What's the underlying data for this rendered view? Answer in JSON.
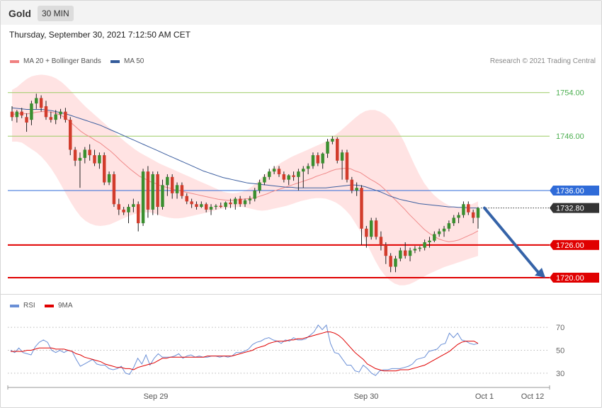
{
  "header": {
    "title": "Gold",
    "interval": "30 MIN"
  },
  "timestamp": "Thursday, September 30, 2021 7:12:50 AM CET",
  "legend": {
    "ma20": {
      "label": "MA 20 + Bollinger Bands",
      "color": "#f08080"
    },
    "ma50": {
      "label": "MA 50",
      "color": "#335b9a"
    }
  },
  "credit": "Research © 2021 Trading Central",
  "rsi_legend": {
    "rsi": {
      "label": "RSI",
      "color": "#6a8fd6"
    },
    "ma9": {
      "label": "9MA",
      "color": "#e00000"
    }
  },
  "chart_data": [
    {
      "type": "candlestick",
      "ylim": [
        1717,
        1758
      ],
      "levels": [
        {
          "value": 1754.0,
          "label": "1754.00",
          "kind": "resistance-minor",
          "color": "#9ccc65"
        },
        {
          "value": 1746.0,
          "label": "1746.00",
          "kind": "resistance-minor",
          "color": "#9ccc65"
        },
        {
          "value": 1736.0,
          "label": "1736.00",
          "kind": "pivot",
          "color": "#2f6bd8"
        },
        {
          "value": 1732.8,
          "label": "1732.80",
          "kind": "last-price",
          "color": "#333333"
        },
        {
          "value": 1726.0,
          "label": "1726.00",
          "kind": "support",
          "color": "#e00000"
        },
        {
          "value": 1720.0,
          "label": "1720.00",
          "kind": "support",
          "color": "#e00000"
        }
      ],
      "x_labels": [
        "Sep 29",
        "Sep 30",
        "Oct 1",
        "Oct 12"
      ],
      "candles": [
        [
          1750.5,
          1751.5,
          1748.8,
          1749.5
        ],
        [
          1749.5,
          1750.8,
          1748.5,
          1750.5
        ],
        [
          1750.5,
          1751.2,
          1749.3,
          1749.8
        ],
        [
          1749.5,
          1750.2,
          1746.8,
          1748.5
        ],
        [
          1749.0,
          1752.5,
          1748.0,
          1752.0
        ],
        [
          1752.0,
          1753.8,
          1751.0,
          1753.0
        ],
        [
          1753.0,
          1753.5,
          1750.5,
          1751.2
        ],
        [
          1751.5,
          1752.5,
          1749.0,
          1749.5
        ],
        [
          1749.5,
          1750.5,
          1748.5,
          1749.0
        ],
        [
          1749.0,
          1750.8,
          1748.2,
          1750.0
        ],
        [
          1750.0,
          1751.0,
          1749.2,
          1750.5
        ],
        [
          1750.5,
          1751.2,
          1748.5,
          1749.0
        ],
        [
          1749.0,
          1749.5,
          1742.5,
          1743.5
        ],
        [
          1743.5,
          1744.0,
          1740.5,
          1741.5
        ],
        [
          1741.5,
          1743.0,
          1736.5,
          1742.0
        ],
        [
          1742.0,
          1744.0,
          1741.0,
          1743.5
        ],
        [
          1743.5,
          1744.5,
          1741.5,
          1742.5
        ],
        [
          1742.5,
          1743.5,
          1740.5,
          1741.0
        ],
        [
          1741.0,
          1743.0,
          1740.0,
          1742.5
        ],
        [
          1742.5,
          1743.0,
          1737.0,
          1737.5
        ],
        [
          1737.5,
          1739.5,
          1737.0,
          1739.0
        ],
        [
          1739.0,
          1739.5,
          1733.0,
          1733.5
        ],
        [
          1733.5,
          1734.5,
          1731.5,
          1732.5
        ],
        [
          1732.5,
          1733.0,
          1731.5,
          1732.0
        ],
        [
          1732.0,
          1733.5,
          1730.0,
          1733.0
        ],
        [
          1733.0,
          1734.5,
          1732.0,
          1733.5
        ],
        [
          1733.5,
          1734.0,
          1728.5,
          1730.0
        ],
        [
          1730.0,
          1740.0,
          1729.5,
          1739.5
        ],
        [
          1739.5,
          1740.5,
          1731.0,
          1732.5
        ],
        [
          1732.5,
          1739.5,
          1731.5,
          1739.0
        ],
        [
          1739.0,
          1739.5,
          1731.5,
          1733.0
        ],
        [
          1733.0,
          1738.0,
          1732.5,
          1737.0
        ],
        [
          1737.0,
          1739.0,
          1735.0,
          1738.5
        ],
        [
          1738.5,
          1739.0,
          1734.5,
          1735.5
        ],
        [
          1735.5,
          1737.5,
          1734.5,
          1737.0
        ],
        [
          1737.0,
          1737.5,
          1734.5,
          1735.0
        ],
        [
          1735.0,
          1735.5,
          1733.5,
          1734.0
        ],
        [
          1734.0,
          1734.5,
          1732.8,
          1733.5
        ],
        [
          1733.5,
          1734.0,
          1732.5,
          1733.0
        ],
        [
          1733.0,
          1734.0,
          1732.8,
          1733.5
        ],
        [
          1733.5,
          1733.8,
          1732.0,
          1732.5
        ],
        [
          1732.5,
          1733.5,
          1731.5,
          1733.0
        ],
        [
          1733.0,
          1733.5,
          1732.5,
          1733.2
        ],
        [
          1733.2,
          1733.8,
          1732.8,
          1733.0
        ],
        [
          1733.0,
          1734.0,
          1732.5,
          1733.8
        ],
        [
          1733.8,
          1734.5,
          1732.8,
          1733.5
        ],
        [
          1733.5,
          1734.8,
          1732.5,
          1734.5
        ],
        [
          1734.5,
          1735.0,
          1733.0,
          1733.5
        ],
        [
          1733.5,
          1734.5,
          1733.0,
          1734.2
        ],
        [
          1734.2,
          1735.0,
          1733.5,
          1734.5
        ],
        [
          1734.5,
          1736.5,
          1734.0,
          1736.0
        ],
        [
          1736.0,
          1738.0,
          1735.5,
          1737.5
        ],
        [
          1737.5,
          1739.0,
          1737.0,
          1738.5
        ],
        [
          1738.5,
          1740.0,
          1738.0,
          1739.5
        ],
        [
          1739.5,
          1740.5,
          1739.0,
          1740.0
        ],
        [
          1740.0,
          1740.5,
          1738.5,
          1739.0
        ],
        [
          1739.0,
          1739.5,
          1737.5,
          1738.0
        ],
        [
          1738.0,
          1739.0,
          1737.0,
          1738.8
        ],
        [
          1738.8,
          1739.5,
          1737.8,
          1738.5
        ],
        [
          1738.5,
          1740.0,
          1736.0,
          1739.5
        ],
        [
          1739.5,
          1740.5,
          1736.5,
          1740.0
        ],
        [
          1740.0,
          1741.0,
          1739.0,
          1740.5
        ],
        [
          1740.5,
          1743.0,
          1740.0,
          1742.5
        ],
        [
          1742.5,
          1743.0,
          1740.5,
          1741.0
        ],
        [
          1741.0,
          1743.0,
          1740.0,
          1742.8
        ],
        [
          1742.8,
          1745.5,
          1742.0,
          1745.0
        ],
        [
          1745.0,
          1746.0,
          1744.5,
          1745.5
        ],
        [
          1745.5,
          1745.8,
          1741.0,
          1741.5
        ],
        [
          1741.5,
          1743.5,
          1738.0,
          1743.0
        ],
        [
          1743.0,
          1743.5,
          1737.5,
          1738.0
        ],
        [
          1738.0,
          1738.5,
          1735.5,
          1736.0
        ],
        [
          1736.0,
          1737.5,
          1735.0,
          1736.5
        ],
        [
          1736.5,
          1737.0,
          1726.0,
          1729.0
        ],
        [
          1729.0,
          1729.5,
          1725.5,
          1727.5
        ],
        [
          1727.5,
          1731.0,
          1727.0,
          1730.5
        ],
        [
          1730.5,
          1731.0,
          1727.0,
          1727.5
        ],
        [
          1727.5,
          1728.5,
          1725.0,
          1726.0
        ],
        [
          1726.0,
          1726.5,
          1722.5,
          1724.0
        ],
        [
          1724.0,
          1724.5,
          1721.0,
          1722.0
        ],
        [
          1722.0,
          1724.0,
          1721.0,
          1723.5
        ],
        [
          1723.5,
          1725.5,
          1723.0,
          1725.0
        ],
        [
          1725.0,
          1726.5,
          1723.5,
          1724.0
        ],
        [
          1724.0,
          1725.5,
          1723.0,
          1725.0
        ],
        [
          1725.0,
          1725.8,
          1724.5,
          1725.3
        ],
        [
          1725.3,
          1725.8,
          1724.8,
          1725.5
        ],
        [
          1725.5,
          1727.0,
          1725.0,
          1726.5
        ],
        [
          1726.5,
          1727.5,
          1725.5,
          1726.8
        ],
        [
          1726.8,
          1728.5,
          1726.5,
          1728.0
        ],
        [
          1728.0,
          1729.0,
          1727.5,
          1728.5
        ],
        [
          1728.5,
          1729.5,
          1727.5,
          1729.0
        ],
        [
          1729.0,
          1730.5,
          1728.5,
          1730.0
        ],
        [
          1730.0,
          1731.5,
          1729.5,
          1731.0
        ],
        [
          1731.0,
          1732.0,
          1730.0,
          1731.5
        ],
        [
          1731.5,
          1734.0,
          1731.0,
          1733.5
        ],
        [
          1733.5,
          1734.0,
          1731.5,
          1732.0
        ],
        [
          1732.0,
          1732.5,
          1730.0,
          1731.0
        ],
        [
          1731.0,
          1733.0,
          1729.0,
          1732.8
        ]
      ],
      "ma20": [
        1750.0,
        1750.1,
        1750.2,
        1750.1,
        1750.2,
        1750.4,
        1750.5,
        1750.5,
        1750.4,
        1750.2,
        1749.8,
        1749.3,
        1748.5,
        1747.7,
        1746.9,
        1746.3,
        1745.8,
        1745.2,
        1744.7,
        1744.0,
        1743.3,
        1742.5,
        1741.6,
        1740.8,
        1740.0,
        1739.3,
        1738.6,
        1738.2,
        1737.7,
        1737.4,
        1737.0,
        1736.7,
        1736.5,
        1736.2,
        1736.0,
        1735.8,
        1735.6,
        1735.4,
        1735.2,
        1735.0,
        1734.8,
        1734.6,
        1734.4,
        1734.3,
        1734.2,
        1734.2,
        1734.3,
        1734.4,
        1734.5,
        1734.6,
        1734.8,
        1735.1,
        1735.4,
        1735.8,
        1736.1,
        1736.4,
        1736.7,
        1737.0,
        1737.3,
        1737.6,
        1737.9,
        1738.2,
        1738.6,
        1738.9,
        1739.2,
        1739.6,
        1739.9,
        1740.0,
        1740.1,
        1740.0,
        1739.6,
        1739.3,
        1738.7,
        1738.1,
        1737.6,
        1737.0,
        1736.2,
        1735.3,
        1734.4,
        1733.5,
        1732.6,
        1731.6,
        1730.7,
        1729.8,
        1728.9,
        1728.2,
        1727.6,
        1727.1,
        1726.8,
        1726.6,
        1726.7,
        1726.9,
        1727.3,
        1727.7,
        1728.1,
        1728.6
      ],
      "ma50": [
        1751.2,
        1751.1,
        1751.0,
        1750.9,
        1750.9,
        1750.9,
        1750.9,
        1750.8,
        1750.7,
        1750.5,
        1750.3,
        1750.1,
        1749.8,
        1749.5,
        1749.2,
        1748.9,
        1748.6,
        1748.3,
        1748.0,
        1747.6,
        1747.2,
        1746.8,
        1746.4,
        1746.0,
        1745.6,
        1745.2,
        1744.8,
        1744.4,
        1744.0,
        1743.6,
        1743.2,
        1742.8,
        1742.4,
        1742.0,
        1741.6,
        1741.2,
        1740.8,
        1740.4,
        1740.0,
        1739.6,
        1739.3,
        1739.0,
        1738.7,
        1738.4,
        1738.2,
        1738.0,
        1737.8,
        1737.6,
        1737.4,
        1737.3,
        1737.2,
        1737.1,
        1737.0,
        1736.9,
        1736.8,
        1736.7,
        1736.6,
        1736.6,
        1736.5,
        1736.5,
        1736.5,
        1736.5,
        1736.5,
        1736.5,
        1736.5,
        1736.6,
        1736.7,
        1736.8,
        1736.9,
        1737.0,
        1737.0,
        1736.9,
        1736.7,
        1736.4,
        1736.1,
        1735.8,
        1735.4,
        1735.0,
        1734.7,
        1734.4,
        1734.2,
        1734.0,
        1733.8,
        1733.6,
        1733.5,
        1733.4,
        1733.3,
        1733.2,
        1733.1,
        1733.0,
        1733.0,
        1732.9,
        1732.9,
        1732.8,
        1732.8,
        1732.8
      ],
      "bb_upper": [
        1754.5,
        1755.0,
        1755.8,
        1756.5,
        1757.0,
        1757.2,
        1757.3,
        1757.2,
        1757.0,
        1756.6,
        1756.0,
        1755.2,
        1754.3,
        1753.3,
        1752.3,
        1751.4,
        1750.6,
        1749.8,
        1749.0,
        1748.2,
        1747.4,
        1746.6,
        1745.8,
        1745.0,
        1744.3,
        1743.6,
        1743.0,
        1742.5,
        1742.0,
        1741.5,
        1741.0,
        1740.6,
        1740.2,
        1739.8,
        1739.4,
        1739.0,
        1738.6,
        1738.2,
        1737.8,
        1737.4,
        1737.0,
        1736.6,
        1736.2,
        1735.8,
        1735.6,
        1735.5,
        1735.6,
        1735.8,
        1736.2,
        1736.8,
        1737.6,
        1738.5,
        1739.3,
        1740.0,
        1740.6,
        1741.2,
        1741.7,
        1742.2,
        1742.6,
        1743.0,
        1743.4,
        1743.8,
        1744.2,
        1744.6,
        1745.0,
        1745.6,
        1746.3,
        1747.0,
        1747.8,
        1748.6,
        1749.4,
        1750.1,
        1750.6,
        1750.8,
        1750.8,
        1750.5,
        1750.0,
        1749.2,
        1748.0,
        1746.5,
        1744.8,
        1742.8,
        1740.8,
        1739.0,
        1737.4,
        1736.2,
        1735.2,
        1734.4,
        1733.8,
        1733.3,
        1733.0,
        1732.9,
        1733.0,
        1733.3,
        1733.6,
        1734.0
      ],
      "bb_lower": [
        1745.0,
        1745.0,
        1744.8,
        1744.2,
        1743.6,
        1743.0,
        1742.2,
        1741.2,
        1740.0,
        1738.6,
        1737.0,
        1735.4,
        1733.8,
        1732.4,
        1731.2,
        1730.4,
        1729.9,
        1729.6,
        1729.5,
        1729.6,
        1729.8,
        1730.2,
        1730.6,
        1731.0,
        1731.4,
        1731.7,
        1731.9,
        1732.0,
        1732.0,
        1731.8,
        1731.5,
        1731.2,
        1731.0,
        1730.9,
        1730.9,
        1731.0,
        1731.2,
        1731.4,
        1731.6,
        1731.8,
        1732.0,
        1732.3,
        1732.5,
        1732.7,
        1732.8,
        1732.9,
        1733.0,
        1733.0,
        1732.8,
        1732.6,
        1732.4,
        1732.3,
        1732.4,
        1732.6,
        1732.8,
        1733.0,
        1733.2,
        1733.5,
        1733.8,
        1734.1,
        1734.3,
        1734.5,
        1734.6,
        1734.6,
        1734.5,
        1734.2,
        1733.8,
        1733.2,
        1732.4,
        1731.4,
        1730.0,
        1728.5,
        1726.8,
        1725.0,
        1723.2,
        1721.6,
        1720.4,
        1719.5,
        1718.9,
        1718.6,
        1718.6,
        1718.8,
        1719.2,
        1719.7,
        1720.2,
        1720.7,
        1721.1,
        1721.5,
        1721.9,
        1722.2,
        1722.5,
        1722.8,
        1723.1,
        1723.4,
        1723.7,
        1724.0
      ],
      "forecast_arrow": {
        "from": 1732.8,
        "to": 1720.0
      }
    },
    {
      "type": "line",
      "name": "RSI",
      "ylim": [
        20,
        80
      ],
      "y_ticks": [
        70,
        50,
        30
      ],
      "rsi": [
        50,
        48,
        52,
        48,
        47,
        46,
        53,
        57,
        59,
        57,
        50,
        48,
        50,
        48,
        50,
        49,
        42,
        36,
        38,
        40,
        42,
        38,
        37,
        37,
        34,
        33,
        34,
        36,
        30,
        29,
        35,
        43,
        38,
        46,
        37,
        43,
        47,
        44,
        44,
        44,
        45,
        47,
        43,
        45,
        46,
        44,
        45,
        44,
        44,
        45,
        45,
        44,
        45,
        44,
        45,
        48,
        48,
        49,
        51,
        55,
        57,
        58,
        60,
        61,
        59,
        58,
        56,
        59,
        58,
        61,
        59,
        59,
        60,
        63,
        66,
        72,
        68,
        72,
        56,
        48,
        47,
        42,
        37,
        37,
        32,
        31,
        37,
        34,
        30,
        28,
        32,
        33,
        33,
        34,
        34,
        34,
        35,
        36,
        38,
        42,
        43,
        44,
        49,
        50,
        51,
        55,
        56,
        65,
        61,
        65,
        59,
        58,
        56,
        55,
        56
      ],
      "ma9": [
        49,
        49,
        49,
        49,
        50,
        50,
        51,
        52,
        52,
        52,
        52,
        51,
        51,
        51,
        50,
        49,
        47,
        46,
        44,
        43,
        42,
        41,
        40,
        38,
        37,
        36,
        35,
        35,
        34,
        34,
        33,
        35,
        36,
        37,
        38,
        39,
        41,
        43,
        43,
        44,
        44,
        44,
        44,
        44,
        44,
        44,
        44,
        44,
        45,
        45,
        45,
        45,
        45,
        45,
        45,
        46,
        47,
        48,
        49,
        50,
        52,
        53,
        54,
        56,
        57,
        58,
        58,
        58,
        59,
        59,
        60,
        60,
        61,
        62,
        63,
        64,
        65,
        66,
        66,
        65,
        63,
        60,
        56,
        52,
        48,
        45,
        42,
        38,
        36,
        34,
        33,
        32,
        32,
        32,
        32,
        33,
        33,
        33,
        34,
        35,
        36,
        37,
        39,
        41,
        43,
        45,
        47,
        49,
        52,
        55,
        57,
        58,
        58,
        58,
        56
      ]
    }
  ]
}
